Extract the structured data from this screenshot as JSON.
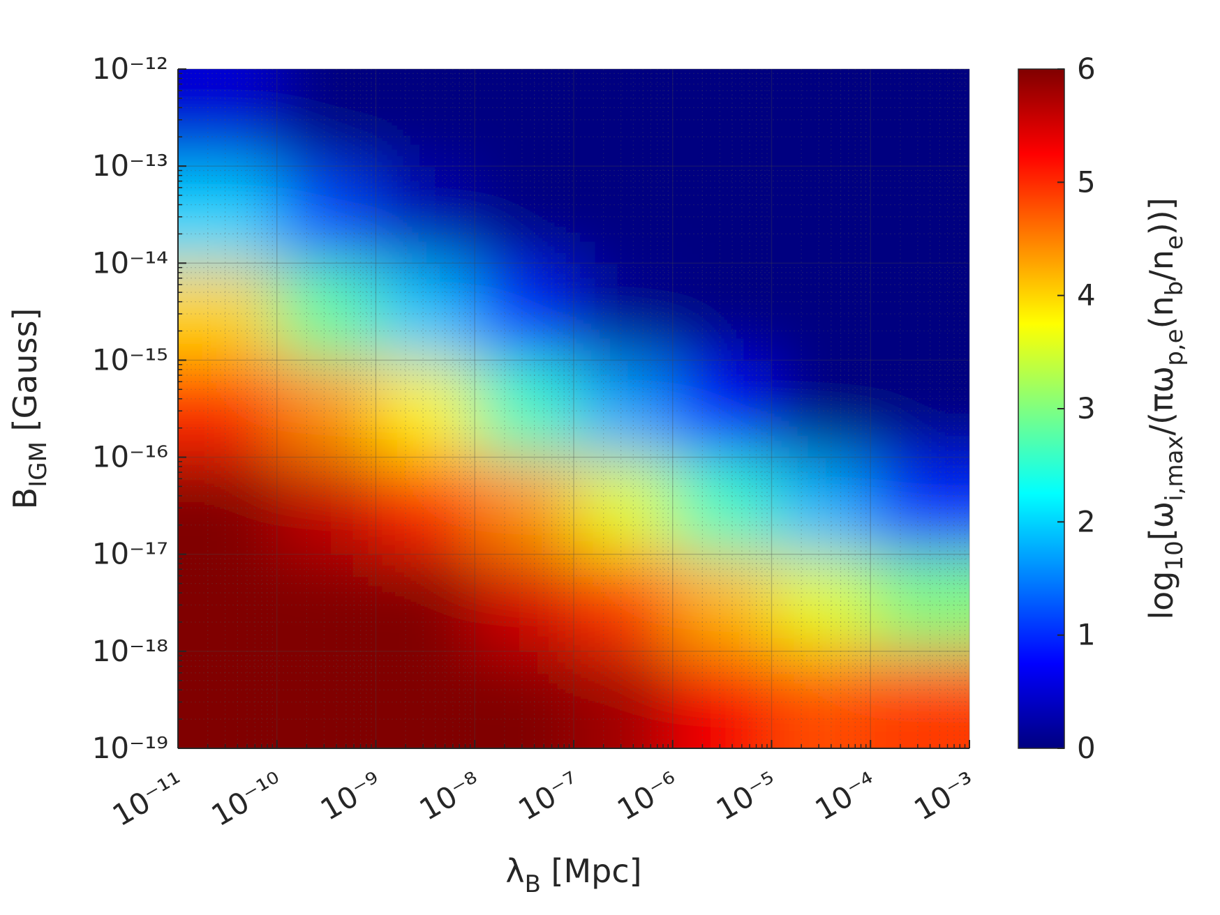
{
  "chart_data": {
    "type": "heatmap",
    "xlabel": [
      {
        "text": "λ"
      },
      {
        "text": "B",
        "shift": "sub"
      },
      {
        "text": " [Mpc]"
      }
    ],
    "ylabel": [
      {
        "text": "B"
      },
      {
        "text": "IGM",
        "shift": "sub"
      },
      {
        "text": " [Gauss]"
      }
    ],
    "clabel": [
      {
        "text": "log"
      },
      {
        "text": "10",
        "shift": "sub"
      },
      {
        "text": "[ω"
      },
      {
        "text": "i,max",
        "shift": "sub"
      },
      {
        "text": "/(πω"
      },
      {
        "text": "p,e",
        "shift": "sub"
      },
      {
        "text": "(n"
      },
      {
        "text": "b",
        "shift": "sub"
      },
      {
        "text": "/n"
      },
      {
        "text": "e",
        "shift": "sub"
      },
      {
        "text": "))]"
      }
    ],
    "xscale": "log",
    "yscale": "log",
    "xlim": [
      1e-11,
      0.001
    ],
    "ylim": [
      1e-19,
      1e-12
    ],
    "xticks": [
      {
        "value": 1e-11,
        "label": "10⁻¹¹"
      },
      {
        "value": 1e-10,
        "label": "10⁻¹⁰"
      },
      {
        "value": 1e-09,
        "label": "10⁻⁹"
      },
      {
        "value": 1e-08,
        "label": "10⁻⁸"
      },
      {
        "value": 1e-07,
        "label": "10⁻⁷"
      },
      {
        "value": 1e-06,
        "label": "10⁻⁶"
      },
      {
        "value": 1e-05,
        "label": "10⁻⁵"
      },
      {
        "value": 0.0001,
        "label": "10⁻⁴"
      },
      {
        "value": 0.001,
        "label": "10⁻³"
      }
    ],
    "yticks": [
      {
        "value": 1e-19,
        "label": "10⁻¹⁹"
      },
      {
        "value": 1e-18,
        "label": "10⁻¹⁸"
      },
      {
        "value": 1e-17,
        "label": "10⁻¹⁷"
      },
      {
        "value": 1e-16,
        "label": "10⁻¹⁶"
      },
      {
        "value": 1e-15,
        "label": "10⁻¹⁵"
      },
      {
        "value": 1e-14,
        "label": "10⁻¹⁴"
      },
      {
        "value": 1e-13,
        "label": "10⁻¹³"
      },
      {
        "value": 1e-12,
        "label": "10⁻¹²"
      }
    ],
    "grid": true,
    "minor_grid": true,
    "colormap": "jet",
    "clim": [
      0,
      6
    ],
    "cticks": [
      0,
      1,
      2,
      3,
      4,
      5,
      6
    ],
    "x": [
      3.16e-11,
      3.16e-10,
      3.16e-09,
      3.16e-08,
      3.16e-07,
      3.16e-06,
      3.16e-05,
      0.000316
    ],
    "y": [
      3.16e-19,
      3.16e-18,
      3.16e-17,
      3.16e-16,
      3.16e-15,
      3.16e-14,
      3.16e-13
    ],
    "z": [
      [
        6,
        6,
        6,
        6,
        5.8,
        5.3,
        4.8,
        4.9
      ],
      [
        6,
        6,
        6,
        5.5,
        4.9,
        4.2,
        3.6,
        3
      ],
      [
        6,
        5.6,
        5,
        4.4,
        3.6,
        2.6,
        1.8,
        1
      ],
      [
        5,
        4.4,
        3.8,
        2.6,
        1.7,
        0.8,
        0,
        0
      ],
      [
        4,
        2.8,
        1.9,
        1,
        0.1,
        0,
        0,
        0
      ],
      [
        2,
        1.2,
        0.3,
        0,
        0,
        0,
        0,
        0
      ],
      [
        0.5,
        0,
        0,
        0,
        0,
        0,
        0,
        0
      ]
    ]
  }
}
